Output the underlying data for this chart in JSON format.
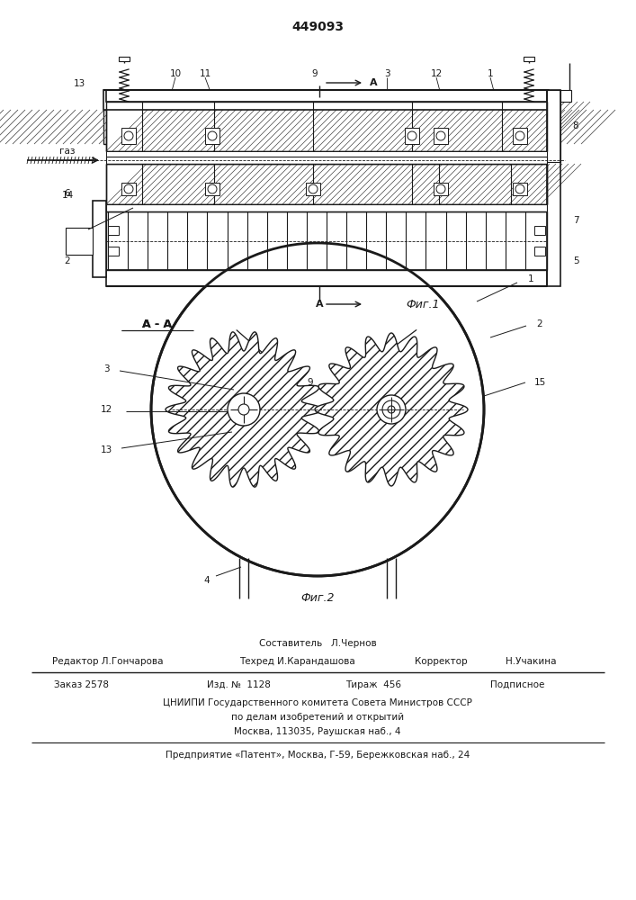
{
  "patent_number": "449093",
  "bg_color": "#ffffff",
  "line_color": "#1a1a1a",
  "footer": {
    "sestavitel": "Составитель   Л.Чернов",
    "redaktor": "Редактор Л.Гончарова",
    "tekhred": "Техред И.Карандашова",
    "korrektor": "Корректор",
    "uchakina": "Н.Учакина",
    "zakaz": "Заказ 2578",
    "izd": "Изд. №  1128",
    "tirazh": "Тираж  456",
    "podpisnoe": "Подписное",
    "tsniip1": "ЦНИИПИ Государственного комитета Совета Министров СССР",
    "tsniip2": "по делам изобретений и открытий",
    "tsniip3": "Москва, 113035, Раушская наб., 4",
    "predpr": "Предприятие «Патент», Москва, Г-59, Бережковская наб., 24"
  },
  "fig1_label": "Фиг.1",
  "fig2_label": "Фиг.2",
  "section_label": "А - А"
}
